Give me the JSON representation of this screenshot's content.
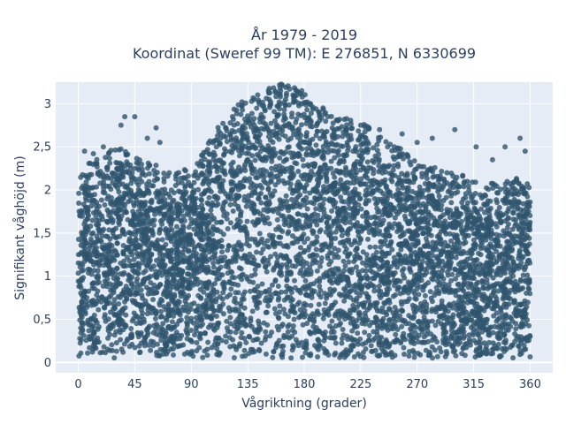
{
  "chart_data": {
    "type": "scatter",
    "title_lines": [
      "År 1979 - 2019",
      "Koordinat (Sweref 99 TM): E 276851, N 6330699"
    ],
    "xlabel": "Vågriktning (grader)",
    "ylabel": "Signifikant våghöjd (m)",
    "xlim": [
      -18,
      378
    ],
    "ylim": [
      -0.12,
      3.25
    ],
    "x_ticks": [
      0,
      45,
      90,
      135,
      180,
      225,
      270,
      315,
      360
    ],
    "y_ticks": [
      0,
      0.5,
      1,
      1.5,
      2,
      2.5,
      3
    ],
    "y_tick_labels": [
      "0",
      "0,5",
      "1",
      "1,5",
      "2",
      "2,5",
      "3"
    ],
    "grid": true,
    "legend": "none",
    "marker_color": "#2f556e",
    "plot_background": "#e5ecf6",
    "envelope": {
      "x": [
        0,
        10,
        20,
        30,
        40,
        45,
        50,
        60,
        70,
        80,
        90,
        100,
        110,
        120,
        130,
        140,
        150,
        160,
        170,
        180,
        190,
        200,
        210,
        220,
        230,
        240,
        250,
        260,
        270,
        280,
        290,
        300,
        310,
        320,
        330,
        340,
        350,
        360
      ],
      "y_max": [
        1.8,
        2.0,
        2.1,
        2.15,
        2.1,
        2.05,
        2.0,
        1.95,
        1.9,
        1.88,
        1.9,
        2.1,
        2.35,
        2.55,
        2.7,
        2.78,
        2.85,
        2.9,
        2.88,
        2.8,
        2.65,
        2.55,
        2.5,
        2.45,
        2.4,
        2.3,
        2.2,
        2.1,
        2.0,
        1.95,
        1.9,
        1.85,
        1.8,
        1.75,
        1.75,
        1.75,
        1.8,
        1.75
      ]
    },
    "outliers": [
      {
        "x": 37,
        "y": 2.85
      },
      {
        "x": 45,
        "y": 2.85
      },
      {
        "x": 34,
        "y": 2.75
      },
      {
        "x": 62,
        "y": 2.72
      },
      {
        "x": 55,
        "y": 2.6
      },
      {
        "x": 65,
        "y": 2.55
      },
      {
        "x": 20,
        "y": 2.5
      },
      {
        "x": 5,
        "y": 2.45
      },
      {
        "x": 12,
        "y": 2.42
      },
      {
        "x": 152,
        "y": 3.05
      },
      {
        "x": 160,
        "y": 3.02
      },
      {
        "x": 177,
        "y": 3.12
      },
      {
        "x": 185,
        "y": 3.0
      },
      {
        "x": 195,
        "y": 2.95
      },
      {
        "x": 165,
        "y": 2.98
      },
      {
        "x": 225,
        "y": 2.75
      },
      {
        "x": 240,
        "y": 2.7
      },
      {
        "x": 258,
        "y": 2.65
      },
      {
        "x": 282,
        "y": 2.6
      },
      {
        "x": 300,
        "y": 2.7
      },
      {
        "x": 317,
        "y": 2.5
      },
      {
        "x": 340,
        "y": 2.5
      },
      {
        "x": 352,
        "y": 2.6
      },
      {
        "x": 356,
        "y": 2.45
      },
      {
        "x": 330,
        "y": 2.35
      },
      {
        "x": 110,
        "y": 2.5
      },
      {
        "x": 122,
        "y": 2.6
      },
      {
        "x": 98,
        "y": 2.3
      },
      {
        "x": 80,
        "y": 2.2
      },
      {
        "x": 270,
        "y": 2.55
      }
    ]
  }
}
